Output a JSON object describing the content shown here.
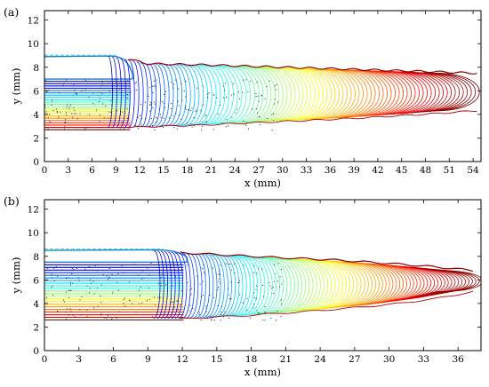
{
  "chart_data": [
    {
      "panel_label": "(a)",
      "type": "contour",
      "xlabel": "x (mm)",
      "ylabel": "y (mm)",
      "xlim": [
        0,
        55
      ],
      "ylim": [
        0,
        12.8
      ],
      "xticks": [
        0,
        3,
        6,
        9,
        12,
        15,
        18,
        21,
        24,
        27,
        30,
        33,
        36,
        39,
        42,
        45,
        48,
        51,
        54
      ],
      "yticks": [
        0,
        2,
        4,
        6,
        8,
        10,
        12
      ],
      "grid": false,
      "bead": {
        "band_start_x": 0,
        "band_end_x": 10.5,
        "band_top_y": 7.0,
        "band_bottom_y": 2.7,
        "wall_top_y": 8.9,
        "top_profile": [
          [
            0,
            8.9
          ],
          [
            8,
            9.0
          ],
          [
            10.5,
            8.7
          ],
          [
            13,
            8.3
          ],
          [
            20,
            8.2
          ],
          [
            30,
            8.0
          ],
          [
            40,
            7.8
          ],
          [
            50,
            7.6
          ],
          [
            54,
            7.5
          ]
        ],
        "bottom_profile": [
          [
            10.5,
            2.9
          ],
          [
            20,
            3.1
          ],
          [
            30,
            3.4
          ],
          [
            40,
            3.7
          ],
          [
            50,
            4.1
          ],
          [
            54,
            4.3
          ]
        ],
        "contour_start_x": 8.5,
        "contour_end_x": 54.8,
        "colormap": "jet",
        "color_from": "blue",
        "color_to": "red"
      }
    },
    {
      "panel_label": "(b)",
      "type": "contour",
      "xlabel": "x (mm)",
      "ylabel": "y (mm)",
      "xlim": [
        0,
        38
      ],
      "ylim": [
        0,
        12.8
      ],
      "xticks": [
        0,
        3,
        6,
        9,
        12,
        15,
        18,
        21,
        24,
        27,
        30,
        33,
        36
      ],
      "yticks": [
        0,
        2,
        4,
        6,
        8,
        10,
        12
      ],
      "grid": false,
      "bead": {
        "band_start_x": 0,
        "band_end_x": 11.8,
        "band_top_y": 7.5,
        "band_bottom_y": 2.6,
        "wall_top_y": 8.5,
        "top_profile": [
          [
            0,
            8.5
          ],
          [
            9,
            8.6
          ],
          [
            11.8,
            8.3
          ],
          [
            14,
            8.2
          ],
          [
            20,
            7.9
          ],
          [
            25,
            7.7
          ],
          [
            30,
            7.4
          ],
          [
            34,
            7.1
          ],
          [
            37.3,
            6.8
          ]
        ],
        "bottom_profile": [
          [
            11.8,
            2.7
          ],
          [
            18,
            3.0
          ],
          [
            24,
            3.4
          ],
          [
            30,
            3.9
          ],
          [
            34,
            4.4
          ],
          [
            37.3,
            5.0
          ]
        ],
        "contour_start_x": 10.0,
        "contour_end_x": 37.6,
        "colormap": "jet",
        "color_from": "blue",
        "color_to": "red"
      }
    }
  ]
}
